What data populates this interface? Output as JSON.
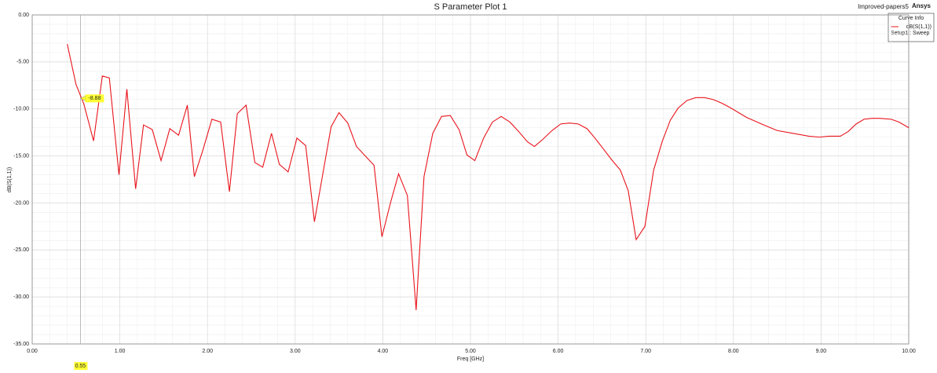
{
  "chart_data": {
    "type": "line",
    "title": "S Parameter Plot 1",
    "project": "Improved-papers5",
    "brand": "Ansys",
    "xlabel": "Freq [GHz]",
    "ylabel": "dB(S(1,1))",
    "legend_title": "Curve Info",
    "legend_setup": "Setup1 : Sweep",
    "legend_position": "top-right",
    "grid": true,
    "xlim": [
      0,
      10
    ],
    "ylim": [
      -35,
      0
    ],
    "xticks": [
      {
        "value": 0,
        "label": "0.00"
      },
      {
        "value": 1,
        "label": "1.00"
      },
      {
        "value": 2,
        "label": "2.00"
      },
      {
        "value": 3,
        "label": "3.00"
      },
      {
        "value": 4,
        "label": "4.00"
      },
      {
        "value": 5,
        "label": "5.00"
      },
      {
        "value": 6,
        "label": "6.00"
      },
      {
        "value": 7,
        "label": "7.00"
      },
      {
        "value": 8,
        "label": "8.00"
      },
      {
        "value": 9,
        "label": "9.00"
      },
      {
        "value": 10,
        "label": "10.00"
      }
    ],
    "yticks": [
      {
        "value": 0,
        "label": "0.00"
      },
      {
        "value": -5,
        "label": "-5.00"
      },
      {
        "value": -10,
        "label": "-10.00"
      },
      {
        "value": -15,
        "label": "-15.00"
      },
      {
        "value": -20,
        "label": "-20.00"
      },
      {
        "value": -25,
        "label": "-25.00"
      },
      {
        "value": -30,
        "label": "-30.00"
      },
      {
        "value": -35,
        "label": "-35.00"
      }
    ],
    "marker": {
      "x": 0.55,
      "y": -8.88
    },
    "x": [
      0.4,
      0.5,
      0.59,
      0.7,
      0.8,
      0.88,
      0.99,
      1.08,
      1.18,
      1.27,
      1.37,
      1.47,
      1.57,
      1.67,
      1.77,
      1.85,
      1.95,
      2.05,
      2.15,
      2.25,
      2.34,
      2.44,
      2.54,
      2.63,
      2.73,
      2.82,
      2.92,
      3.02,
      3.12,
      3.22,
      3.31,
      3.41,
      3.5,
      3.6,
      3.7,
      3.8,
      3.9,
      3.99,
      4.09,
      4.18,
      4.28,
      4.38,
      4.47,
      4.57,
      4.67,
      4.77,
      4.87,
      4.96,
      5.05,
      5.15,
      5.25,
      5.35,
      5.45,
      5.55,
      5.65,
      5.73,
      5.83,
      5.93,
      6.03,
      6.13,
      6.23,
      6.33,
      6.42,
      6.52,
      6.61,
      6.71,
      6.8,
      6.89,
      6.99,
      7.09,
      7.19,
      7.28,
      7.37,
      7.47,
      7.57,
      7.67,
      7.77,
      7.87,
      7.97,
      8.15,
      8.32,
      8.5,
      8.68,
      8.86,
      8.98,
      9.09,
      9.22,
      9.31,
      9.4,
      9.49,
      9.58,
      9.67,
      9.8,
      9.89,
      10.0
    ],
    "series": [
      {
        "name": "dB(S(1,1))",
        "color": "#e8141c",
        "values": [
          -3.1,
          -7.4,
          -9.5,
          -13.4,
          -6.5,
          -6.7,
          -17.0,
          -7.9,
          -18.5,
          -11.7,
          -12.2,
          -15.5,
          -12.1,
          -12.8,
          -9.6,
          -17.2,
          -14.3,
          -11.1,
          -11.4,
          -18.8,
          -10.5,
          -9.6,
          -15.7,
          -16.2,
          -12.6,
          -15.9,
          -16.7,
          -13.1,
          -13.9,
          -22.0,
          -17.2,
          -11.9,
          -10.4,
          -11.5,
          -14.0,
          -15.0,
          -16.0,
          -23.6,
          -19.9,
          -16.9,
          -19.2,
          -31.4,
          -17.2,
          -12.6,
          -10.8,
          -10.7,
          -12.2,
          -14.9,
          -15.5,
          -13.1,
          -11.4,
          -10.8,
          -11.4,
          -12.4,
          -13.5,
          -14.0,
          -13.2,
          -12.3,
          -11.6,
          -11.5,
          -11.6,
          -12.1,
          -13.1,
          -14.3,
          -15.4,
          -16.5,
          -18.7,
          -23.9,
          -22.5,
          -16.5,
          -13.4,
          -11.2,
          -9.9,
          -9.1,
          -8.8,
          -8.8,
          -9.0,
          -9.4,
          -9.9,
          -10.9,
          -11.6,
          -12.3,
          -12.6,
          -12.9,
          -13.0,
          -12.9,
          -12.9,
          -12.4,
          -11.6,
          -11.1,
          -11.0,
          -11.0,
          -11.1,
          -11.4,
          -12.0
        ]
      }
    ]
  }
}
